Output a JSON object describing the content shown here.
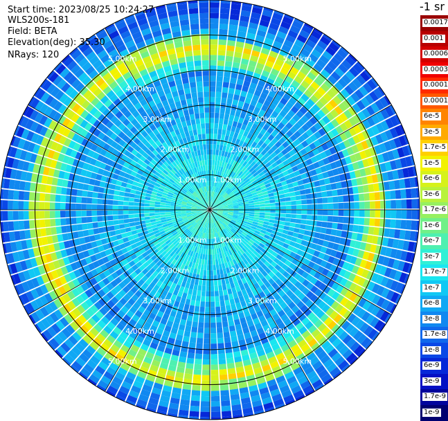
{
  "header": {
    "start_time": "Start time: 2023/08/25 10:24:27",
    "instrument": "WLS200s-181",
    "field": "Field: BETA",
    "elevation": "Elevation(deg): 35.30",
    "nrays": "NRays: 120"
  },
  "colorbar": {
    "unit_label": "-1 sr",
    "levels": [
      {
        "label": "0.0017",
        "color": "#9a0000"
      },
      {
        "label": "0.001",
        "color": "#b80000"
      },
      {
        "label": "0.0006",
        "color": "#d40000"
      },
      {
        "label": "0.0003",
        "color": "#f00000"
      },
      {
        "label": "0.00017",
        "color": "#ff2a00"
      },
      {
        "label": "0.0001",
        "color": "#ff5800"
      },
      {
        "label": "6e-5",
        "color": "#ff8400"
      },
      {
        "label": "3e-5",
        "color": "#ffaa00"
      },
      {
        "label": "1.7e-5",
        "color": "#ffd000"
      },
      {
        "label": "1e-5",
        "color": "#f2f200"
      },
      {
        "label": "6e-6",
        "color": "#d6f21a"
      },
      {
        "label": "3e-6",
        "color": "#b8f23c"
      },
      {
        "label": "1.7e-6",
        "color": "#96f060"
      },
      {
        "label": "1e-6",
        "color": "#70f088"
      },
      {
        "label": "6e-7",
        "color": "#4ef0b0"
      },
      {
        "label": "3e-7",
        "color": "#30f0d6"
      },
      {
        "label": "1.7e-7",
        "color": "#1ae6f0"
      },
      {
        "label": "1e-7",
        "color": "#10c8f4"
      },
      {
        "label": "6e-8",
        "color": "#10a8f4"
      },
      {
        "label": "3e-8",
        "color": "#1088f0"
      },
      {
        "label": "1.7e-8",
        "color": "#1068ec"
      },
      {
        "label": "1e-8",
        "color": "#0a48e6"
      },
      {
        "label": "6e-9",
        "color": "#0628d8"
      },
      {
        "label": "3e-9",
        "color": "#0410c4"
      },
      {
        "label": "1.7e-9",
        "color": "#02049c"
      },
      {
        "label": "1e-9",
        "color": "#000070"
      }
    ]
  },
  "chart_data": {
    "type": "heatmap",
    "projection": "polar",
    "field": "BETA",
    "n_rays": 120,
    "range_unit": "km",
    "max_range_km": 6.0,
    "range_rings_km": [
      1,
      2,
      3,
      4,
      5,
      6
    ],
    "range_ring_labels": [
      "1.00km",
      "2.00km",
      "3.00km",
      "4.00km",
      "5.00km"
    ],
    "azimuth_spokes_deg": [
      0,
      30,
      60,
      90,
      120,
      150,
      180,
      210,
      240,
      270,
      300,
      330
    ],
    "profile": [
      {
        "range_km": 0.2,
        "level": "3e-7"
      },
      {
        "range_km": 0.5,
        "level": "3e-7"
      },
      {
        "range_km": 1.0,
        "level": "1.7e-7"
      },
      {
        "range_km": 1.5,
        "level": "1.7e-7"
      },
      {
        "range_km": 2.0,
        "level": "1e-7"
      },
      {
        "range_km": 2.5,
        "level": "1e-7"
      },
      {
        "range_km": 3.0,
        "level": "6e-8"
      },
      {
        "range_km": 3.5,
        "level": "6e-8"
      },
      {
        "range_km": 4.0,
        "level": "3e-8"
      },
      {
        "range_km": 4.3,
        "level": "1.7e-7"
      },
      {
        "range_km": 4.5,
        "level": "1e-6"
      },
      {
        "range_km": 4.65,
        "level": "6e-6"
      },
      {
        "range_km": 4.8,
        "level": "1e-5"
      },
      {
        "range_km": 5.0,
        "level": "1.7e-6"
      },
      {
        "range_km": 5.2,
        "level": "6e-8"
      },
      {
        "range_km": 5.5,
        "level": "3e-8"
      },
      {
        "range_km": 6.0,
        "level": "1e-8"
      }
    ],
    "layer_peak_km": [
      4.55,
      4.62,
      4.7,
      4.72,
      4.75,
      4.8,
      4.84,
      4.86,
      4.82,
      4.78,
      4.72,
      4.64
    ]
  }
}
